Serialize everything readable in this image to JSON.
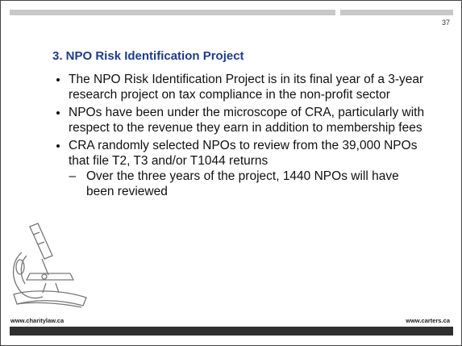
{
  "slide_number": "37",
  "heading": "3. NPO Risk Identification Project",
  "bullets": [
    {
      "text": "The NPO Risk Identification Project is in its final year of a 3-year research project on tax compliance in the non-profit sector"
    },
    {
      "text": "NPOs have been under the microscope of CRA, particularly with respect to the revenue they earn in addition to membership fees"
    },
    {
      "text": "CRA randomly selected NPOs to review from the 39,000 NPOs that file T2, T3 and/or T1044 returns",
      "sub_bullets": [
        "Over the three years of the project, 1440 NPOs will have been reviewed"
      ]
    }
  ],
  "footer": {
    "left": "www.charitylaw.ca",
    "right": "www.carters.ca"
  }
}
